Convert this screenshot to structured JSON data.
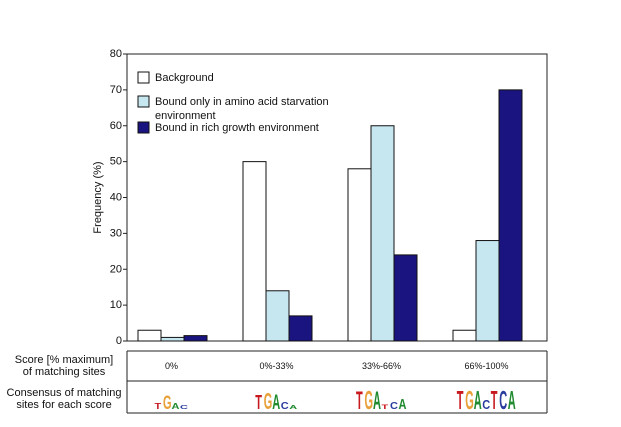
{
  "chart_data": {
    "type": "bar",
    "ylabel": "Frequency (%)",
    "ylim": [
      0,
      80
    ],
    "yticks": [
      0,
      10,
      20,
      30,
      40,
      50,
      60,
      70,
      80
    ],
    "grid": false,
    "legend_position": "top-left",
    "categories": [
      "0%",
      "0%-33%",
      "33%-66%",
      "66%-100%"
    ],
    "series": [
      {
        "name": "Background",
        "color": "#ffffff",
        "values": [
          3,
          50,
          48,
          3
        ]
      },
      {
        "name": "Bound only in amino acid starvation environment",
        "color": "#c6e6f0",
        "values": [
          1,
          14,
          60,
          28
        ]
      },
      {
        "name": "Bound in rich growth environment",
        "color": "#1a1480",
        "values": [
          1.5,
          7,
          24,
          70
        ]
      }
    ],
    "legend_lines": [
      [
        "Background"
      ],
      [
        "Bound only in amino acid starvation",
        "environment"
      ],
      [
        "Bound in rich growth environment"
      ]
    ],
    "table": {
      "row1_label": [
        "Score [% maximum]",
        "of matching sites"
      ],
      "row2_label": [
        "Consensus of matching",
        "sites for each score"
      ]
    },
    "logos": [
      [
        {
          "t": "T",
          "c": "#c8191e",
          "h": 0.32
        },
        {
          "t": "G",
          "c": "#e8a13a",
          "h": 0.75
        },
        {
          "t": "A",
          "c": "#1f8a2e",
          "h": 0.3
        },
        {
          "t": "C",
          "c": "#2a3c9e",
          "h": 0.22
        }
      ],
      [
        {
          "t": "T",
          "c": "#c8191e",
          "h": 0.78
        },
        {
          "t": "G",
          "c": "#e8a13a",
          "h": 0.9
        },
        {
          "t": "A",
          "c": "#1f8a2e",
          "h": 0.82
        },
        {
          "t": "C",
          "c": "#2a3c9e",
          "h": 0.4
        },
        {
          "t": "A",
          "c": "#1f8a2e",
          "h": 0.2
        }
      ],
      [
        {
          "t": "T",
          "c": "#c8191e",
          "h": 0.95
        },
        {
          "t": "G",
          "c": "#e8a13a",
          "h": 1.0
        },
        {
          "t": "A",
          "c": "#1f8a2e",
          "h": 0.95
        },
        {
          "t": "T",
          "c": "#c8191e",
          "h": 0.25
        },
        {
          "t": "C",
          "c": "#2a3c9e",
          "h": 0.38
        },
        {
          "t": "A",
          "c": "#1f8a2e",
          "h": 0.55
        }
      ],
      [
        {
          "t": "T",
          "c": "#c8191e",
          "h": 1.0
        },
        {
          "t": "G",
          "c": "#e8a13a",
          "h": 1.0
        },
        {
          "t": "A",
          "c": "#1f8a2e",
          "h": 1.0
        },
        {
          "t": "C",
          "c": "#2a3c9e",
          "h": 0.5
        },
        {
          "t": "T",
          "c": "#c8191e",
          "h": 1.0
        },
        {
          "t": "C",
          "c": "#2a3c9e",
          "h": 1.0
        },
        {
          "t": "A",
          "c": "#1f8a2e",
          "h": 1.0
        }
      ]
    ]
  }
}
